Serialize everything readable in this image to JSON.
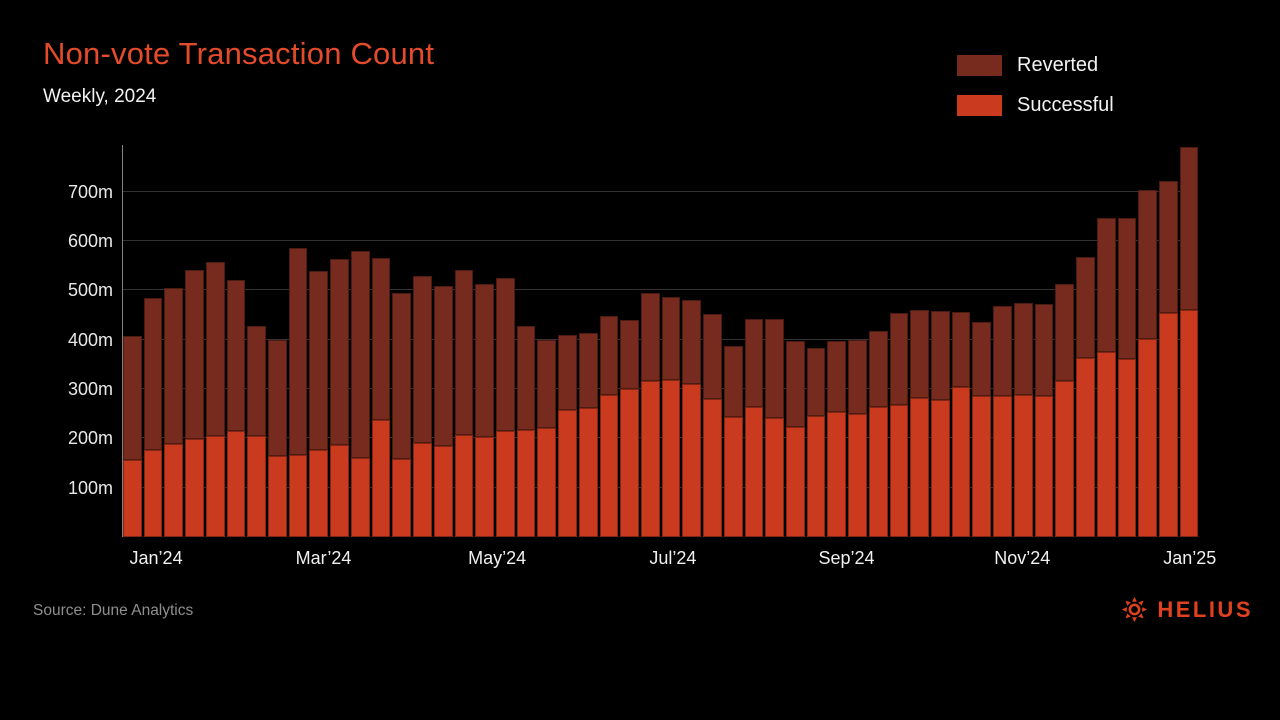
{
  "page": {
    "title": "Non-vote Transaction Count",
    "subtitle": "Weekly, 2024"
  },
  "footer": {
    "source": "Source: Dune Analytics",
    "brand": "HELIUS",
    "brand_icon": "helius-sunburst-icon",
    "brand_color": "#e0421f"
  },
  "colors": {
    "background": "#000000",
    "title": "#e34b2b",
    "text": "#f2f2f2",
    "axis_label": "#e8e8e8",
    "gridline": "#333333",
    "axis_line": "#828282",
    "source_text": "#8e8e8e",
    "reverted": "#762b1e",
    "successful": "#c93a1e"
  },
  "chart_data": {
    "type": "bar",
    "stacked": true,
    "title": "Non-vote Transaction Count",
    "subtitle": "Weekly, 2024",
    "x_unit": "week of 2024",
    "weeks": 52,
    "y_unit": "millions of transactions",
    "ylim": [
      0,
      795
    ],
    "grid": "horizontal",
    "legend_position": "top-right",
    "stack_order_bottom_to_top": [
      "Successful",
      "Reverted"
    ],
    "series": [
      {
        "name": "Reverted",
        "color": "#762b1e",
        "values": [
          252,
          307,
          318,
          342,
          352,
          307,
          223,
          235,
          420,
          363,
          376,
          421,
          329,
          337,
          338,
          325,
          335,
          311,
          311,
          210,
          178,
          153,
          152,
          161,
          140,
          179,
          168,
          170,
          173,
          144,
          179,
          201,
          174,
          139,
          144,
          150,
          154,
          187,
          179,
          181,
          152,
          149,
          182,
          186,
          186,
          197,
          204,
          271,
          284,
          301,
          268,
          330
        ]
      },
      {
        "name": "Successful",
        "color": "#c93a1e",
        "values": [
          156,
          177,
          188,
          199,
          205,
          215,
          204,
          165,
          166,
          177,
          187,
          160,
          237,
          158,
          191,
          184,
          206,
          203,
          214,
          218,
          222,
          257,
          261,
          288,
          301,
          316,
          318,
          310,
          279,
          243,
          264,
          242,
          223,
          245,
          254,
          249,
          264,
          267,
          281,
          277,
          304,
          287,
          286,
          289,
          287,
          317,
          364,
          375,
          362,
          402,
          454,
          460
        ]
      }
    ],
    "totals": [
      408,
      484,
      506,
      541,
      557,
      522,
      427,
      400,
      586,
      540,
      563,
      581,
      566,
      495,
      529,
      509,
      541,
      514,
      525,
      428,
      400,
      410,
      413,
      449,
      441,
      495,
      486,
      480,
      452,
      387,
      443,
      443,
      397,
      384,
      398,
      399,
      418,
      454,
      460,
      458,
      456,
      436,
      468,
      475,
      473,
      514,
      568,
      646,
      646,
      703,
      722,
      790
    ],
    "y_ticks": [
      {
        "value": 100,
        "label": "100m"
      },
      {
        "value": 200,
        "label": "200m"
      },
      {
        "value": 300,
        "label": "300m"
      },
      {
        "value": 400,
        "label": "400m"
      },
      {
        "value": 500,
        "label": "500m"
      },
      {
        "value": 600,
        "label": "600m"
      },
      {
        "value": 700,
        "label": "700m"
      }
    ],
    "x_ticks": [
      {
        "week": 2.1,
        "label": "Jan’24"
      },
      {
        "week": 10.2,
        "label": "Mar’24"
      },
      {
        "week": 18.6,
        "label": "May’24"
      },
      {
        "week": 27.1,
        "label": "Jul’24"
      },
      {
        "week": 35.5,
        "label": "Sep’24"
      },
      {
        "week": 44.0,
        "label": "Nov’24"
      },
      {
        "week": 52.1,
        "label": "Jan’25"
      }
    ]
  }
}
